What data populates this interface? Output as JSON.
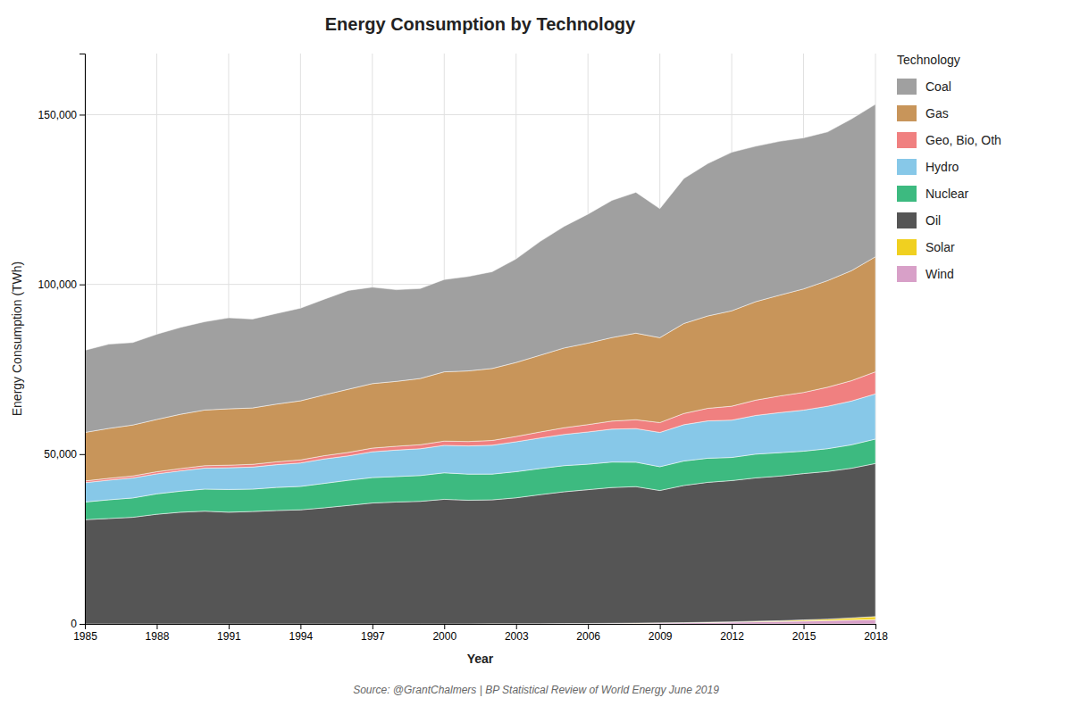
{
  "chart_data": {
    "type": "area",
    "stacked": true,
    "title": "Energy Consumption by Technology",
    "x_label": "Year",
    "y_label": "Energy Consumption (TWh)",
    "legend_title": "Technology",
    "annotations": [
      "Source: @GrantChalmers | BP Statistical Review of World Energy June 2019"
    ],
    "x": [
      1985,
      1986,
      1987,
      1988,
      1989,
      1990,
      1991,
      1992,
      1993,
      1994,
      1995,
      1996,
      1997,
      1998,
      1999,
      2000,
      2001,
      2002,
      2003,
      2004,
      2005,
      2006,
      2007,
      2008,
      2009,
      2010,
      2011,
      2012,
      2013,
      2014,
      2015,
      2016,
      2017,
      2018
    ],
    "series": [
      {
        "name": "Wind",
        "color": "#d8a0c8",
        "values": [
          0,
          0,
          0,
          0,
          0,
          0,
          0,
          0,
          0,
          0,
          0,
          0,
          0,
          0,
          0,
          0,
          20,
          30,
          40,
          60,
          104,
          131,
          170,
          219,
          276,
          342,
          437,
          521,
          635,
          707,
          833,
          960,
          1122,
          1270
        ]
      },
      {
        "name": "Solar",
        "color": "#f0d020",
        "values": [
          0,
          0,
          0,
          0,
          0,
          0,
          0,
          0,
          0,
          0,
          0,
          0,
          0,
          0,
          0,
          0,
          2,
          3,
          4,
          5,
          6,
          8,
          10,
          14,
          20,
          32,
          60,
          100,
          170,
          230,
          340,
          450,
          625,
          878
        ]
      },
      {
        "name": "Oil",
        "color": "#555555",
        "values": [
          30700,
          31050,
          31400,
          32300,
          32900,
          33200,
          32900,
          33100,
          33400,
          33600,
          34200,
          34900,
          35600,
          35900,
          36100,
          36700,
          36400,
          36500,
          37100,
          38000,
          38800,
          39400,
          40000,
          40200,
          39000,
          40400,
          41200,
          41600,
          42200,
          42600,
          43100,
          43500,
          44100,
          45100
        ]
      },
      {
        "name": "Nuclear",
        "color": "#3dba80",
        "values": [
          5200,
          5500,
          5700,
          6000,
          6200,
          6500,
          6700,
          6600,
          6800,
          6900,
          7200,
          7400,
          7500,
          7500,
          7600,
          7800,
          7700,
          7600,
          7700,
          7700,
          7700,
          7500,
          7500,
          7200,
          7000,
          7200,
          7100,
          6800,
          7000,
          6900,
          6600,
          6700,
          6900,
          7200
        ]
      },
      {
        "name": "Hydro",
        "color": "#87c8e8",
        "values": [
          5700,
          5800,
          5900,
          5900,
          6000,
          6200,
          6400,
          6500,
          6700,
          6900,
          7200,
          7200,
          7600,
          7800,
          7900,
          8100,
          8300,
          8500,
          8800,
          9000,
          9200,
          9500,
          9700,
          9900,
          10100,
          10700,
          11000,
          11000,
          11400,
          11800,
          12100,
          12500,
          12900,
          13300
        ]
      },
      {
        "name": "Geo, Bio, Oth",
        "color": "#f08080",
        "values": [
          500,
          540,
          580,
          620,
          660,
          700,
          750,
          800,
          850,
          900,
          960,
          1020,
          1080,
          1130,
          1180,
          1240,
          1300,
          1400,
          1560,
          1760,
          1960,
          2160,
          2360,
          2600,
          2900,
          3300,
          3700,
          4100,
          4500,
          4900,
          5200,
          5600,
          6000,
          6500
        ]
      },
      {
        "name": "Gas",
        "color": "#c8955a",
        "values": [
          14300,
          14700,
          15000,
          15400,
          16000,
          16400,
          16600,
          16600,
          17000,
          17400,
          17900,
          18600,
          19000,
          19100,
          19500,
          20400,
          20800,
          21200,
          21800,
          22600,
          23500,
          24000,
          24600,
          25500,
          25000,
          26500,
          27200,
          28100,
          29000,
          29700,
          30500,
          31400,
          32400,
          33900
        ]
      },
      {
        "name": "Coal",
        "color": "#a0a0a0",
        "values": [
          24200,
          24800,
          24300,
          25100,
          25600,
          26000,
          26800,
          26200,
          26700,
          27300,
          28200,
          29100,
          28400,
          27000,
          26500,
          27200,
          27800,
          28500,
          30500,
          33500,
          35800,
          38000,
          40400,
          41500,
          38000,
          42700,
          44900,
          46700,
          45800,
          45300,
          44500,
          43800,
          44700,
          44900
        ]
      }
    ],
    "xlim": [
      1985,
      2018
    ],
    "xticks": [
      1985,
      1988,
      1991,
      1994,
      1997,
      2000,
      2003,
      2006,
      2009,
      2012,
      2015,
      2018
    ],
    "ylim": [
      0,
      168000
    ],
    "yticks": [
      0,
      {
        "value": 50000,
        "label": "50,000"
      },
      {
        "value": 100000,
        "label": "100,000"
      },
      {
        "value": 150000,
        "label": "150,000"
      }
    ],
    "grid": true,
    "legend": "right"
  }
}
